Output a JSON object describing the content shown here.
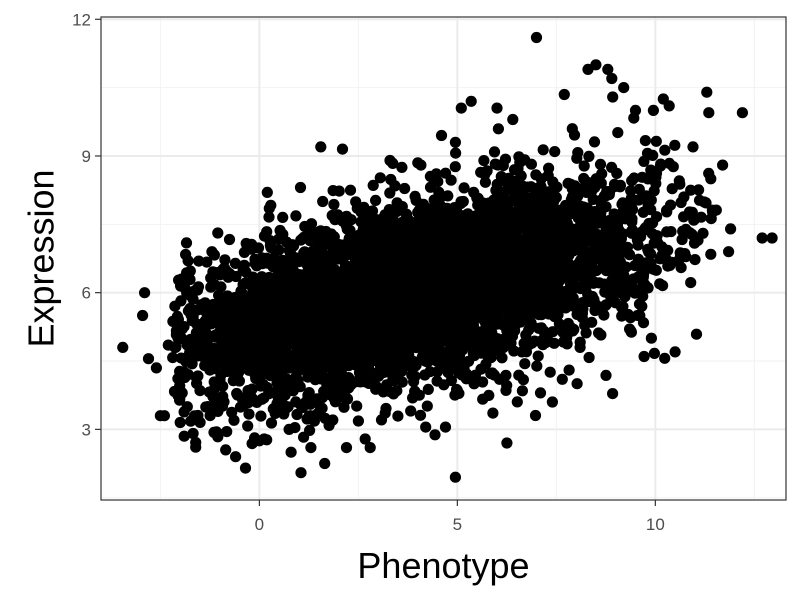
{
  "chart_data": {
    "type": "scatter",
    "title": "",
    "xlabel": "Phenotype",
    "ylabel": "Expression",
    "xlim": [
      -4.0,
      13.3
    ],
    "ylim": [
      1.45,
      12.05
    ],
    "x_ticks": [
      0,
      5,
      10
    ],
    "y_ticks": [
      3,
      6,
      9,
      12
    ],
    "x_tick_labels": [
      "0",
      "5",
      "10"
    ],
    "y_tick_labels": [
      "3",
      "6",
      "9",
      "12"
    ],
    "grid": true,
    "legend": "none",
    "point_color": "#000000",
    "point_count_approx": 5000,
    "points": [
      [
        -3.45,
        4.8
      ],
      [
        -2.9,
        6.0
      ],
      [
        -2.95,
        5.5
      ],
      [
        -2.8,
        4.55
      ],
      [
        -2.6,
        4.35
      ],
      [
        -2.5,
        3.3
      ],
      [
        -2.4,
        3.3
      ],
      [
        -2.3,
        4.85
      ],
      [
        -2.0,
        3.15
      ],
      [
        -1.8,
        6.7
      ],
      [
        -1.9,
        2.85
      ],
      [
        -1.5,
        3.85
      ],
      [
        -1.3,
        3.5
      ],
      [
        -1.2,
        6.9
      ],
      [
        -1.25,
        4.3
      ],
      [
        -0.85,
        2.55
      ],
      [
        -0.6,
        2.4
      ],
      [
        -0.35,
        2.15
      ],
      [
        0.0,
        2.75
      ],
      [
        0.25,
        7.85
      ],
      [
        0.2,
        8.2
      ],
      [
        0.4,
        3.35
      ],
      [
        0.75,
        3.0
      ],
      [
        0.8,
        2.5
      ],
      [
        1.05,
        2.05
      ],
      [
        1.3,
        2.6
      ],
      [
        1.6,
        8.0
      ],
      [
        1.55,
        9.2
      ],
      [
        1.65,
        2.25
      ],
      [
        2.1,
        9.15
      ],
      [
        2.2,
        2.6
      ],
      [
        2.3,
        8.25
      ],
      [
        2.8,
        2.6
      ],
      [
        3.3,
        8.9
      ],
      [
        3.6,
        8.75
      ],
      [
        4.0,
        8.85
      ],
      [
        4.2,
        3.05
      ],
      [
        4.7,
        3.05
      ],
      [
        4.6,
        9.45
      ],
      [
        4.95,
        9.3
      ],
      [
        4.95,
        1.95
      ],
      [
        5.1,
        10.05
      ],
      [
        5.35,
        10.2
      ],
      [
        5.75,
        7.3
      ],
      [
        6.0,
        10.05
      ],
      [
        6.25,
        2.7
      ],
      [
        6.4,
        9.8
      ],
      [
        7.0,
        11.6
      ],
      [
        7.4,
        3.6
      ],
      [
        7.1,
        3.8
      ],
      [
        7.65,
        4.1
      ],
      [
        7.7,
        10.35
      ],
      [
        8.1,
        4.8
      ],
      [
        8.3,
        10.9
      ],
      [
        8.5,
        11.0
      ],
      [
        8.8,
        10.9
      ],
      [
        8.9,
        10.7
      ],
      [
        9.2,
        10.5
      ],
      [
        9.5,
        10.0
      ],
      [
        9.35,
        5.2
      ],
      [
        9.55,
        5.5
      ],
      [
        9.6,
        5.75
      ],
      [
        9.9,
        5.0
      ],
      [
        9.95,
        10.0
      ],
      [
        10.2,
        10.25
      ],
      [
        10.35,
        10.1
      ],
      [
        10.5,
        4.7
      ],
      [
        10.65,
        6.55
      ],
      [
        10.95,
        9.2
      ],
      [
        11.3,
        10.4
      ],
      [
        11.35,
        9.95
      ],
      [
        11.4,
        8.5
      ],
      [
        11.7,
        8.8
      ],
      [
        11.85,
        6.9
      ],
      [
        12.2,
        9.95
      ],
      [
        12.7,
        7.2
      ],
      [
        12.95,
        7.2
      ],
      [
        11.9,
        7.4
      ]
    ],
    "trend": {
      "slope": 0.2,
      "intercept": 5.25,
      "x_mean": 3.8,
      "x_sd": 3.1,
      "residual_sd": 0.95
    }
  }
}
